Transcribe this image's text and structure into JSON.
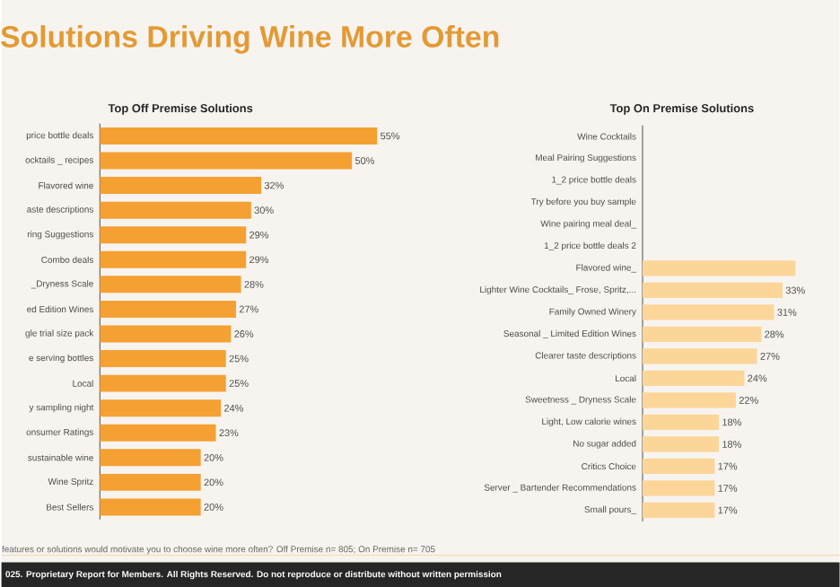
{
  "chart_data": [
    {
      "type": "bar",
      "orientation": "horizontal",
      "title": "Solutions Driving Wine More Often",
      "subtitle": "Top Off Premise Solutions",
      "categories": [
        "price bottle deals",
        "ocktails _ recipes",
        "Flavored wine",
        "aste descriptions",
        "ring Suggestions",
        "Combo deals",
        "_Dryness Scale",
        "ed Edition Wines",
        "gle trial size pack",
        "e serving bottles",
        "Local",
        "y sampling night",
        "onsumer Ratings",
        "sustainable wine",
        "Wine Spritz",
        "Best Sellers"
      ],
      "values": [
        55,
        50,
        32,
        30,
        29,
        29,
        28,
        27,
        26,
        25,
        25,
        24,
        23,
        20,
        20,
        20
      ],
      "color": "#f5a033",
      "value_labels": [
        "55%",
        "50%",
        "32%",
        "30%",
        "29%",
        "29%",
        "28%",
        "27%",
        "26%",
        "25%",
        "25%",
        "24%",
        "23%",
        "20%",
        "20%",
        "20%"
      ],
      "annotations": [
        "features or solutions would motivate you to choose wine more often? Off Premise n= 805; On Premise n= 705",
        "025. Proprietary Report for Members. All Rights Reserved. Do not reproduce or distribute without written permission"
      ]
    },
    {
      "type": "bar",
      "orientation": "horizontal",
      "title": "Top On Premise Solutions",
      "categories": [
        "Wine Cocktails",
        "Meal Pairing Suggestions",
        "1_2 price bottle deals",
        "Try before you buy sample",
        "Wine pairing meal deal_",
        "1_2 price bottle deals 2",
        "Flavored wine_",
        "Lighter Wine Cocktails_ Frose, Spritz,...",
        "Family Owned Winery",
        "Seasonal _ Limited Edition Wines",
        "Clearer taste descriptions",
        "Local",
        "Sweetness _ Dryness Scale",
        "Light, Low calorie wines",
        "No sugar added",
        "Critics Choice",
        "Server _ Bartender Recommendations",
        "Small pours_"
      ],
      "values": [
        null,
        null,
        null,
        null,
        null,
        null,
        36,
        33,
        31,
        28,
        27,
        24,
        22,
        18,
        18,
        17,
        17,
        17
      ],
      "value_labels": [
        null,
        null,
        null,
        null,
        null,
        null,
        null,
        "33%",
        "31%",
        "28%",
        "27%",
        "24%",
        "22%",
        "18%",
        "18%",
        "17%",
        "17%",
        "17%"
      ],
      "color": "#fcd699"
    }
  ]
}
